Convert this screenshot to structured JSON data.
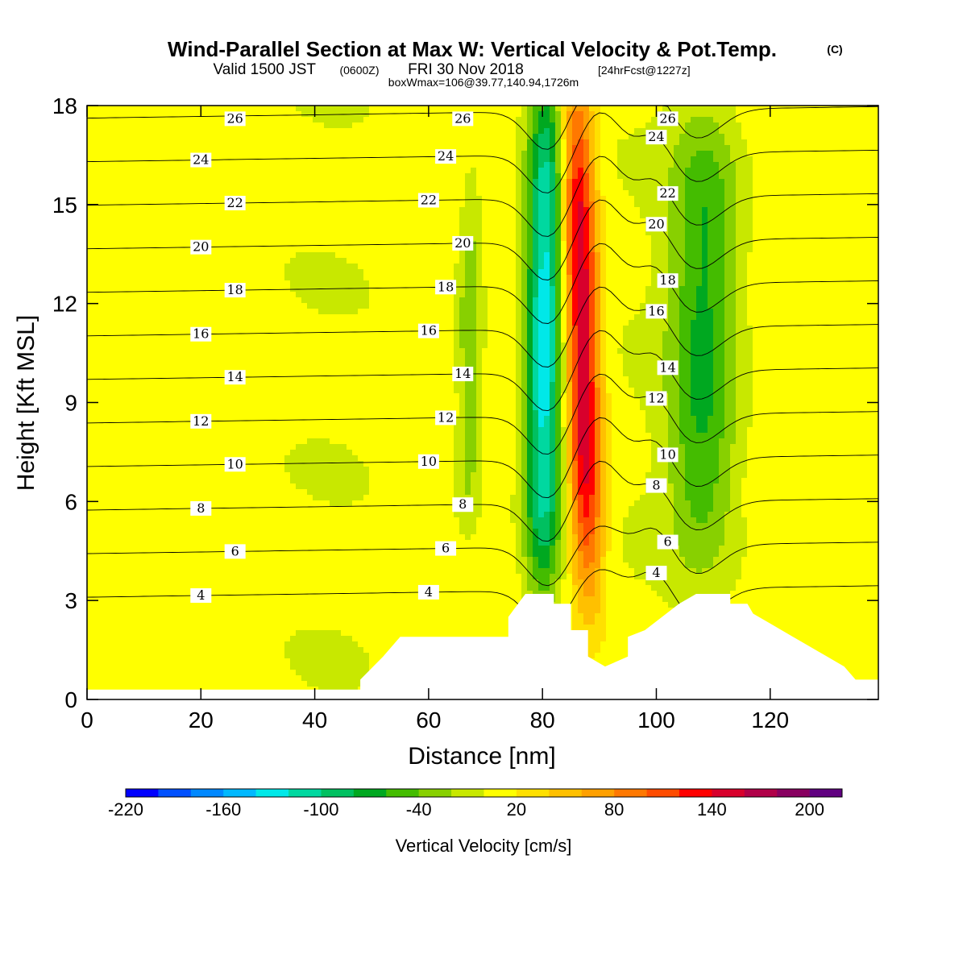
{
  "header": {
    "title": "Wind-Parallel Section at Max W: Vertical Velocity & Pot.Temp.",
    "copyright": "(C)",
    "valid_prefix": "Valid 1500 JST",
    "valid_zulu": "(0600Z)",
    "valid_date": "FRI 30 Nov 2018",
    "forecast": "[24hrFcst@1227z]",
    "box_info": "boxWmax=106@39.77,140.94,1726m"
  },
  "chart_data": {
    "type": "heatmap",
    "xlabel": "Distance [nm]",
    "ylabel": "Height [Kft MSL]",
    "xlim": [
      0,
      139
    ],
    "ylim": [
      0,
      18
    ],
    "x_ticks": [
      0,
      20,
      40,
      60,
      80,
      100,
      120
    ],
    "y_ticks": [
      0,
      3,
      6,
      9,
      12,
      15,
      18
    ],
    "colorbar": {
      "label": "Vertical Velocity [cm/s]",
      "levels": [
        -220,
        -200,
        -180,
        -160,
        -140,
        -120,
        -100,
        -80,
        -60,
        -40,
        -20,
        0,
        20,
        40,
        60,
        80,
        100,
        120,
        140,
        160,
        180,
        200,
        220
      ],
      "tick_labels": [
        -220,
        -160,
        -100,
        -40,
        20,
        80,
        140,
        200
      ],
      "colors": [
        "#0000ff",
        "#0050ff",
        "#0088ff",
        "#00b8ff",
        "#00e8e8",
        "#00d8a0",
        "#00c060",
        "#00a820",
        "#44bc00",
        "#88d000",
        "#c8e800",
        "#ffff00",
        "#ffe000",
        "#ffc000",
        "#ffa000",
        "#ff7800",
        "#ff4c00",
        "#ff0000",
        "#d8002c",
        "#b00048",
        "#880060",
        "#600080"
      ]
    },
    "theta_contours": [
      4,
      6,
      8,
      10,
      12,
      14,
      16,
      18,
      20,
      22,
      24,
      26
    ],
    "velocity_features": [
      {
        "kind": "downdraft",
        "x": 80,
        "x_from": 74,
        "x_to": 83,
        "height_from": 4,
        "height_to": 18,
        "peak": -140
      },
      {
        "kind": "updraft",
        "x": 88,
        "x_from": 84,
        "x_to": 92,
        "height_from": 4,
        "height_to": 18,
        "peak": 150
      },
      {
        "kind": "downdraft",
        "x": 108,
        "x_from": 100,
        "x_to": 116,
        "height_from": 5,
        "height_to": 17,
        "peak": -70
      },
      {
        "kind": "downdraft",
        "x": 67,
        "x_from": 64,
        "x_to": 70,
        "height_from": 6,
        "height_to": 15,
        "peak": -45
      }
    ],
    "terrain_nm_kft": [
      [
        0,
        0.3
      ],
      [
        48,
        0.3
      ],
      [
        48,
        0.6
      ],
      [
        52,
        1.3
      ],
      [
        55,
        1.9
      ],
      [
        74,
        1.9
      ],
      [
        74,
        2.5
      ],
      [
        77,
        3.2
      ],
      [
        82,
        3.2
      ],
      [
        82,
        2.9
      ],
      [
        85,
        2.9
      ],
      [
        85,
        2.1
      ],
      [
        88,
        2.1
      ],
      [
        88,
        1.3
      ],
      [
        91,
        1.0
      ],
      [
        95,
        1.3
      ],
      [
        95,
        1.9
      ],
      [
        98,
        2.1
      ],
      [
        101,
        2.5
      ],
      [
        104,
        2.9
      ],
      [
        107,
        3.2
      ],
      [
        113,
        3.2
      ],
      [
        113,
        2.9
      ],
      [
        116,
        2.9
      ],
      [
        117,
        2.6
      ],
      [
        120,
        2.3
      ],
      [
        124,
        1.9
      ],
      [
        127,
        1.6
      ],
      [
        130,
        1.3
      ],
      [
        133,
        1.0
      ],
      [
        135,
        0.6
      ],
      [
        139,
        0.6
      ]
    ]
  }
}
